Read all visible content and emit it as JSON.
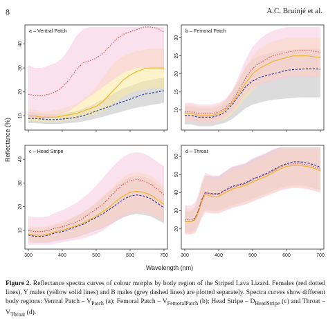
{
  "header": {
    "page_number": "8",
    "author": "A.C. Bruinjé et al."
  },
  "caption": {
    "label": "Figure 2.",
    "text_1": " Reflectance spectra curves of colour morphs by body region of the Striped Lava Lizard. Females (red dotted lines), Y males (yellow solid lines) and B males (grey dashed lines) are plotted separately. Spectra curves show different body regions: Ventral Patch – V",
    "sub_1": "Patch",
    "text_2": " (a); Femoral Patch – V",
    "sub_2": "FemoralPatch",
    "text_3": " (b); Head Stripe – D",
    "sub_3": "HeadStripe",
    "text_4": " (c) and Throat – V",
    "sub_4": "Throat",
    "text_5": " (d)."
  },
  "colors": {
    "female": "#d9534f",
    "female_band": "#f7c6de",
    "ymale": "#f0b429",
    "ymale_band": "#fbeaa0",
    "bmale": "#2e3f9e",
    "bmale_band": "#b9b9b9"
  },
  "chart_data": {
    "type": "line",
    "xlabel": "Wavelength (nm)",
    "ylabel": "Reflectance (%)",
    "xlim": [
      300,
      700
    ],
    "x_ticks": [
      300,
      400,
      500,
      600,
      700
    ],
    "grid": false,
    "panels": [
      {
        "label": "a – Ventral Patch",
        "ylim": [
          5,
          47
        ],
        "y_ticks": [
          10,
          20,
          30,
          40
        ],
        "x": [
          300,
          320,
          340,
          360,
          380,
          400,
          420,
          440,
          460,
          480,
          500,
          520,
          540,
          560,
          580,
          600,
          620,
          640,
          660,
          680,
          700
        ],
        "series": [
          {
            "group": "female",
            "mean": [
              19,
              18.5,
              18.5,
              19,
              20,
              22,
              25,
              29,
              32,
              33,
              34,
              36,
              39,
              42,
              44,
              45,
              46,
              47,
              47,
              46.5,
              45
            ],
            "lower": [
              9,
              9,
              9,
              9,
              10,
              11,
              12,
              14,
              16,
              18,
              20,
              22,
              24,
              26,
              28,
              29,
              30,
              30,
              30,
              30,
              29
            ],
            "upper": [
              31,
              30,
              30,
              31,
              32,
              34,
              38,
              43,
              46,
              47,
              47,
              48,
              48,
              48,
              48,
              48,
              48,
              48,
              48,
              48,
              48
            ]
          },
          {
            "group": "ymale",
            "mean": [
              10,
              10,
              9.5,
              9.5,
              9.5,
              10,
              10.5,
              11,
              12,
              13,
              14,
              16,
              19,
              22,
              25,
              27,
              28.5,
              29.5,
              30,
              30,
              30
            ],
            "lower": [
              8,
              8,
              7.5,
              7.5,
              7.5,
              8,
              8.5,
              9,
              9.5,
              10,
              11,
              12,
              14,
              16,
              18,
              19.5,
              20.5,
              21,
              21.5,
              21.5,
              21.5
            ],
            "upper": [
              13,
              12.5,
              12,
              12,
              12.5,
              13,
              14,
              15,
              17,
              19,
              22,
              26,
              30,
              33,
              35,
              36,
              37,
              37.5,
              38,
              38,
              38
            ]
          },
          {
            "group": "bmale",
            "mean": [
              9,
              9,
              8.7,
              8.5,
              8.5,
              8.7,
              9,
              9.5,
              10,
              11,
              12,
              13,
              14,
              15,
              16,
              17,
              18,
              19,
              19.5,
              20,
              20.5
            ],
            "lower": [
              7,
              7,
              6.8,
              6.7,
              6.7,
              6.8,
              7,
              7.3,
              7.7,
              8.3,
              9,
              9.7,
              10.5,
              11.2,
              12,
              12.8,
              13.5,
              14,
              14.5,
              15,
              15.5
            ],
            "upper": [
              11.5,
              11.3,
              11,
              10.8,
              10.8,
              11,
              11.5,
              12,
              13,
              14,
              15.5,
              17,
              18.5,
              20,
              21.5,
              22.5,
              23.5,
              24.5,
              25,
              25.5,
              26
            ]
          }
        ]
      },
      {
        "label": "b – Femoral Patch",
        "ylim": [
          5,
          33
        ],
        "y_ticks": [
          10,
          15,
          20,
          25,
          30
        ],
        "x": [
          300,
          320,
          340,
          360,
          380,
          400,
          420,
          440,
          460,
          480,
          500,
          520,
          540,
          560,
          580,
          600,
          620,
          640,
          660,
          680,
          700
        ],
        "series": [
          {
            "group": "female",
            "mean": [
              9.5,
              9.5,
              9,
              9,
              9,
              9.5,
              10.5,
              12.5,
              15.5,
              19,
              21.5,
              23,
              24,
              25,
              25.5,
              26,
              26.3,
              26.5,
              26.5,
              26.3,
              26
            ],
            "lower": [
              7,
              7,
              6.5,
              6.5,
              6.5,
              7,
              8,
              9.5,
              12,
              14.5,
              16,
              17,
              17.5,
              18,
              18.5,
              19,
              19,
              19,
              19,
              19,
              19
            ],
            "upper": [
              12,
              12,
              11.5,
              11.5,
              11.5,
              12,
              13,
              15.5,
              19.5,
              24,
              27.5,
              29.5,
              31,
              32,
              32.5,
              33,
              33,
              33,
              33,
              33,
              33
            ]
          },
          {
            "group": "ymale",
            "mean": [
              9,
              9,
              8.5,
              8.5,
              8.5,
              9,
              10,
              12,
              14.5,
              17.5,
              20,
              21.5,
              22.5,
              23.5,
              24,
              24.5,
              25,
              25,
              25,
              24.8,
              24.5
            ],
            "lower": [
              7,
              7,
              6.5,
              6.5,
              6.5,
              7,
              7.5,
              9,
              11,
              13.5,
              15.5,
              17,
              18,
              18.5,
              19,
              19.5,
              19.5,
              19.5,
              19.5,
              19.3,
              19
            ],
            "upper": [
              11.5,
              11.5,
              11,
              11,
              11,
              11.5,
              12.5,
              15,
              18.5,
              22,
              25,
              27,
              28,
              29,
              29.5,
              30,
              30,
              30,
              30,
              30,
              30
            ]
          },
          {
            "group": "bmale",
            "mean": [
              8.5,
              8.5,
              8,
              8,
              8,
              8.5,
              9.5,
              11.5,
              14,
              16.5,
              18,
              19,
              19.5,
              20,
              20.5,
              21,
              21.2,
              21.3,
              21.4,
              21.4,
              21.3
            ],
            "lower": [
              6,
              6,
              5.5,
              5.5,
              5.5,
              6,
              6.5,
              7.5,
              9,
              10.5,
              11.5,
              12,
              12.5,
              12.8,
              13,
              13.2,
              13.3,
              13.5,
              13.5,
              13.5,
              13.5
            ],
            "upper": [
              11,
              11,
              10.5,
              10.5,
              10.5,
              11,
              12.5,
              15,
              18.5,
              22,
              24,
              25,
              25.5,
              26,
              26.3,
              26.5,
              26.7,
              26.8,
              26.9,
              27,
              27
            ]
          }
        ]
      },
      {
        "label": "c – Head Stripe",
        "ylim": [
          3,
          45
        ],
        "y_ticks": [
          10,
          20,
          30,
          40
        ],
        "x": [
          300,
          320,
          340,
          360,
          380,
          400,
          420,
          440,
          460,
          480,
          500,
          520,
          540,
          560,
          580,
          600,
          620,
          640,
          660,
          680,
          700
        ],
        "series": [
          {
            "group": "female",
            "mean": [
              10,
              9.5,
              9.5,
              10,
              11,
              11.5,
              12.5,
              13.5,
              15,
              17,
              19,
              21,
              24,
              27,
              29.5,
              31,
              31.5,
              31,
              29.5,
              27.5,
              25
            ],
            "lower": [
              4,
              4,
              4,
              4,
              4.5,
              5,
              5.5,
              6,
              6.5,
              7.5,
              8.5,
              10,
              12,
              14,
              15.5,
              17,
              17.5,
              17.5,
              17,
              15.5,
              14
            ],
            "upper": [
              16,
              15.5,
              15.5,
              16,
              17.5,
              18.5,
              20,
              21.5,
              23.5,
              26,
              29,
              32,
              35.5,
              38.5,
              41,
              42.5,
              43,
              42.5,
              41,
              39,
              37
            ]
          },
          {
            "group": "ymale",
            "mean": [
              8.5,
              8,
              8,
              8.5,
              9.5,
              10,
              11,
              12,
              13,
              14.5,
              16,
              18,
              20,
              22.5,
              24.5,
              26,
              26.5,
              26,
              25,
              23,
              21
            ],
            "lower": [
              5,
              5,
              5,
              5.5,
              6,
              6.5,
              7,
              7.5,
              8.5,
              9.5,
              10.5,
              11.5,
              13,
              15,
              16.5,
              17.5,
              18,
              17.5,
              17,
              15.5,
              14
            ],
            "upper": [
              12,
              11.5,
              11.5,
              12,
              13,
              14,
              15,
              16,
              17.5,
              19.5,
              22,
              24.5,
              27,
              30,
              32.5,
              34,
              34.5,
              34,
              33,
              31,
              28.5
            ]
          },
          {
            "group": "bmale",
            "mean": [
              8,
              7.5,
              7.5,
              8,
              9,
              9.5,
              10.5,
              11.5,
              12.5,
              14,
              15.5,
              17,
              19,
              21,
              23,
              24.5,
              25,
              24.5,
              23.5,
              21.5,
              19.5
            ],
            "lower": [
              5,
              4.8,
              4.8,
              5,
              5.5,
              6,
              6.5,
              7,
              8,
              9,
              10,
              11,
              12.5,
              14,
              15.5,
              16.5,
              17,
              16.5,
              16,
              14.5,
              13
            ],
            "upper": [
              11,
              10.5,
              10.5,
              11,
              12.5,
              13,
              14.5,
              16,
              17.5,
              19.5,
              21.5,
              24,
              26.5,
              29,
              31,
              32.5,
              33,
              32.5,
              31.5,
              29.5,
              27.5
            ]
          }
        ]
      },
      {
        "label": "d – Throat",
        "ylim": [
          10,
          65
        ],
        "y_ticks": [
          20,
          30,
          40,
          50,
          60
        ],
        "x": [
          300,
          310,
          320,
          330,
          340,
          350,
          360,
          380,
          400,
          420,
          440,
          460,
          480,
          500,
          520,
          540,
          560,
          580,
          600,
          620,
          640,
          660,
          680,
          700
        ],
        "series": [
          {
            "group": "female",
            "mean": [
              25,
              25,
              25,
              26,
              30,
              36,
              40,
              39,
              39,
              41,
              43,
              44,
              45,
              47,
              48.5,
              50,
              52,
              54,
              55.5,
              56,
              56,
              55.5,
              54.5,
              53
            ],
            "lower": [
              17,
              17,
              17,
              17.5,
              21,
              26,
              29,
              28.5,
              28.5,
              30,
              31.5,
              32.5,
              33.5,
              35,
              36.5,
              38,
              39.5,
              41,
              42,
              42.5,
              42.5,
              42,
              41,
              40
            ],
            "upper": [
              33,
              33,
              33,
              34.5,
              39,
              46,
              51,
              49.5,
              49.5,
              52,
              54.5,
              55.5,
              56.5,
              59,
              60.5,
              62,
              64,
              65,
              65,
              65,
              65,
              65,
              65,
              65
            ]
          },
          {
            "group": "ymale",
            "mean": [
              24,
              24,
              24,
              25,
              29,
              35,
              39,
              38,
              38,
              40,
              42,
              43,
              44,
              46,
              47.5,
              49,
              51,
              53,
              54.5,
              55,
              55,
              54.5,
              53.5,
              52
            ],
            "lower": [
              17.5,
              17.5,
              17.5,
              18,
              21.5,
              26.5,
              29.5,
              29,
              29,
              30.5,
              32,
              33,
              34,
              35.5,
              37,
              38.5,
              40,
              41.5,
              42.5,
              43,
              43,
              42.5,
              41.5,
              40.5
            ],
            "upper": [
              31,
              31,
              31,
              32.5,
              37,
              44,
              49,
              47.5,
              47.5,
              50,
              52.5,
              53.5,
              54.5,
              57,
              58.5,
              60,
              62,
              64,
              65,
              65,
              65,
              65,
              65,
              64
            ]
          },
          {
            "group": "bmale",
            "mean": [
              24,
              24,
              24,
              25.5,
              30,
              36,
              40,
              39.5,
              39.5,
              41.5,
              43.5,
              44.5,
              45.5,
              47.5,
              49,
              50.5,
              52.5,
              54.5,
              56,
              57,
              57,
              56.5,
              55.5,
              54
            ],
            "lower": [
              18,
              18,
              18,
              19,
              22.5,
              27.5,
              30.5,
              30,
              30,
              31.5,
              33,
              34,
              35,
              36.5,
              38,
              39.5,
              41,
              42.5,
              43.5,
              44,
              44,
              43.5,
              42.5,
              41.5
            ],
            "upper": [
              30,
              30,
              30,
              32,
              37.5,
              44.5,
              49.5,
              49,
              49,
              51.5,
              54,
              55,
              56,
              58.5,
              60,
              61.5,
              63.5,
              65,
              65,
              65,
              65,
              65,
              65,
              65
            ]
          }
        ]
      }
    ]
  }
}
